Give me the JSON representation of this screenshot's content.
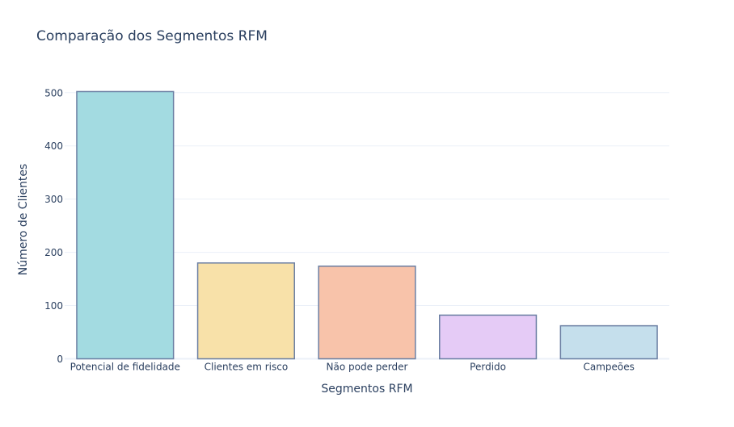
{
  "chart_data": {
    "type": "bar",
    "title": "Comparação dos Segmentos RFM",
    "xlabel": "Segmentos RFM",
    "ylabel": "Número de Clientes",
    "categories": [
      "Potencial de fidelidade",
      "Clientes em risco",
      "Não pode perder",
      "Perdido",
      "Campeões"
    ],
    "values": [
      502,
      180,
      174,
      82,
      62
    ],
    "colors": [
      "#a3dbe1",
      "#f8e1a9",
      "#f8c3aa",
      "#e5cbf6",
      "#c5dfec"
    ],
    "bar_outline_color": "#6b7fa3",
    "y_ticks": [
      0,
      100,
      200,
      300,
      400,
      500
    ],
    "ylim": [
      0,
      530
    ],
    "grid": true
  }
}
